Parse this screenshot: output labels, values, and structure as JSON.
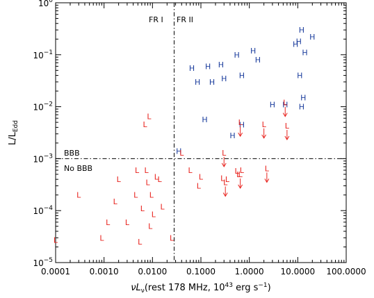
{
  "chart_data": {
    "type": "scatter",
    "xscale": "log",
    "yscale": "log",
    "xlim": [
      0.0001,
      100
    ],
    "ylim": [
      1e-05,
      1
    ],
    "xlabel": {
      "prefix": "νL",
      "sub": "ν",
      "text1": "(rest 178 MHz, 10",
      "sup": "43",
      "text2": " erg s",
      "sup2": "−1",
      "text3": ")"
    },
    "ylabel": {
      "main": "L/L",
      "sub": "Edd"
    },
    "x_ticks": [
      {
        "v": 0.0001,
        "label": "0.0001"
      },
      {
        "v": 0.001,
        "label": "0.0010"
      },
      {
        "v": 0.01,
        "label": "0.0100"
      },
      {
        "v": 0.1,
        "label": "0.1000"
      },
      {
        "v": 1,
        "label": "1.0000"
      },
      {
        "v": 10,
        "label": "10.0000"
      },
      {
        "v": 100,
        "label": "100.0000"
      }
    ],
    "y_ticks": [
      {
        "v": 1e-05,
        "base": "10",
        "exp": "−5"
      },
      {
        "v": 0.0001,
        "base": "10",
        "exp": "−4"
      },
      {
        "v": 0.001,
        "base": "10",
        "exp": "−3"
      },
      {
        "v": 0.01,
        "base": "10",
        "exp": "−2"
      },
      {
        "v": 0.1,
        "base": "10",
        "exp": "−1"
      },
      {
        "v": 1,
        "base": "10",
        "exp": "0"
      }
    ],
    "divider_x": 0.028,
    "divider_y": 0.001,
    "annotations": {
      "fr1": "FR I",
      "fr2": "FR II",
      "bbb": "BBB",
      "nobbb": "No BBB"
    },
    "colors": {
      "H": "#1a3c9c",
      "L": "#e8231e",
      "axis": "#000000"
    },
    "series": [
      {
        "marker": "H",
        "points": [
          [
            0.035,
            0.0014
          ],
          [
            0.065,
            0.055
          ],
          [
            0.085,
            0.03
          ],
          [
            0.14,
            0.06
          ],
          [
            0.17,
            0.03
          ],
          [
            0.26,
            0.065
          ],
          [
            0.3,
            0.035
          ],
          [
            0.12,
            0.0057
          ],
          [
            0.45,
            0.0028
          ],
          [
            0.55,
            0.1
          ],
          [
            0.7,
            0.0045
          ],
          [
            1.2,
            0.12
          ],
          [
            1.5,
            0.08
          ],
          [
            3.0,
            0.011
          ],
          [
            0.7,
            0.04
          ],
          [
            5.5,
            0.011
          ],
          [
            9.0,
            0.16
          ],
          [
            10.5,
            0.18
          ],
          [
            11.0,
            0.04
          ],
          [
            12.0,
            0.01
          ],
          [
            12.0,
            0.3
          ],
          [
            13.0,
            0.015
          ],
          [
            14.0,
            0.11
          ],
          [
            20.0,
            0.22
          ]
        ]
      },
      {
        "marker": "L",
        "points": [
          [
            0.0001,
            2.7e-05
          ],
          [
            0.0003,
            0.0002
          ],
          [
            0.0009,
            3e-05
          ],
          [
            0.0012,
            6e-05
          ],
          [
            0.0017,
            0.00015
          ],
          [
            0.002,
            0.0004
          ],
          [
            0.003,
            6e-05
          ],
          [
            0.0045,
            0.0002
          ],
          [
            0.0048,
            0.0006
          ],
          [
            0.0055,
            2.5e-05
          ],
          [
            0.0062,
            0.00011
          ],
          [
            0.007,
            0.0046
          ],
          [
            0.0075,
            0.0006
          ],
          [
            0.008,
            0.00035
          ],
          [
            0.0085,
            0.0065
          ],
          [
            0.009,
            5e-05
          ],
          [
            0.0095,
            0.0002
          ],
          [
            0.0105,
            8.5e-05
          ],
          [
            0.012,
            0.00045
          ],
          [
            0.014,
            0.0004
          ],
          [
            0.016,
            0.00012
          ],
          [
            0.025,
            3e-05
          ],
          [
            0.04,
            0.0013
          ],
          [
            0.06,
            0.0006
          ],
          [
            0.09,
            0.0003
          ],
          [
            0.1,
            0.00045
          ],
          [
            0.28,
            0.00042
          ],
          [
            0.35,
            0.0004
          ],
          [
            0.55,
            0.00058
          ],
          [
            0.6,
            0.0005
          ],
          [
            0.7,
            0.0006
          ]
        ]
      },
      {
        "marker": "L",
        "limit": "upper",
        "points": [
          [
            0.3,
            0.0013
          ],
          [
            0.32,
            0.00035
          ],
          [
            0.65,
            0.0005
          ],
          [
            0.65,
            0.005
          ],
          [
            2.0,
            0.0046
          ],
          [
            2.3,
            0.00065
          ],
          [
            5.5,
            0.012
          ],
          [
            6.0,
            0.0043
          ]
        ]
      }
    ]
  }
}
